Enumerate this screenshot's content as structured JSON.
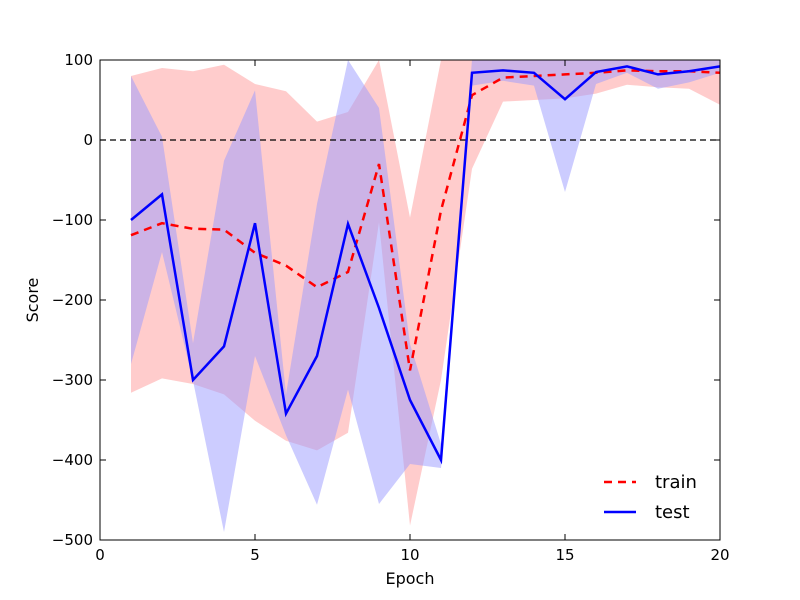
{
  "chart_data": {
    "type": "line",
    "xlabel": "Epoch",
    "ylabel": "Score",
    "xlim": [
      0,
      20
    ],
    "ylim": [
      -500,
      100
    ],
    "xticks": [
      0,
      5,
      10,
      15,
      20
    ],
    "yticks": [
      -500,
      -400,
      -300,
      -200,
      -100,
      0,
      100
    ],
    "reference_line": {
      "y": 0,
      "style": "dashed",
      "color": "#000000"
    },
    "grid": false,
    "legend": {
      "position": "bottom-right"
    },
    "series": [
      {
        "name": "train",
        "style": "dashed",
        "color": "#ff0000",
        "band_color": "#ff9999",
        "x": [
          1,
          2,
          3,
          4,
          5,
          6,
          7,
          8,
          9,
          10,
          11,
          12,
          13,
          14,
          15,
          16,
          17,
          18,
          19,
          20
        ],
        "values": [
          -119,
          -104,
          -111,
          -112,
          -141,
          -157,
          -184,
          -165,
          -30,
          -288,
          -88,
          56,
          78,
          80,
          82,
          84,
          87,
          86,
          86,
          84
        ],
        "upper": [
          80,
          90,
          86,
          94,
          70,
          61,
          23,
          35,
          100,
          -97,
          100,
          100,
          100,
          100,
          100,
          100,
          100,
          100,
          100,
          100
        ],
        "lower": [
          -316,
          -298,
          -305,
          -318,
          -351,
          -376,
          -388,
          -366,
          -103,
          -482,
          -300,
          -36,
          48,
          50,
          52,
          58,
          69,
          66,
          64,
          44
        ]
      },
      {
        "name": "test",
        "style": "solid",
        "color": "#0000ff",
        "band_color": "#9999ff",
        "x": [
          1,
          2,
          3,
          4,
          5,
          6,
          7,
          8,
          9,
          10,
          11,
          12,
          13,
          14,
          15,
          16,
          17,
          18,
          19,
          20
        ],
        "values": [
          -100,
          -68,
          -300,
          -258,
          -104,
          -342,
          -270,
          -105,
          -210,
          -325,
          -400,
          84,
          87,
          84,
          51,
          85,
          92,
          82,
          86,
          92
        ],
        "upper": [
          80,
          4,
          -254,
          -26,
          62,
          -318,
          -80,
          100,
          40,
          -255,
          -380,
          100,
          100,
          100,
          100,
          100,
          100,
          100,
          100,
          100
        ],
        "lower": [
          -280,
          -140,
          -301,
          -490,
          -270,
          -369,
          -456,
          -312,
          -455,
          -405,
          -410,
          68,
          74,
          68,
          -65,
          70,
          84,
          64,
          72,
          84
        ]
      }
    ]
  }
}
